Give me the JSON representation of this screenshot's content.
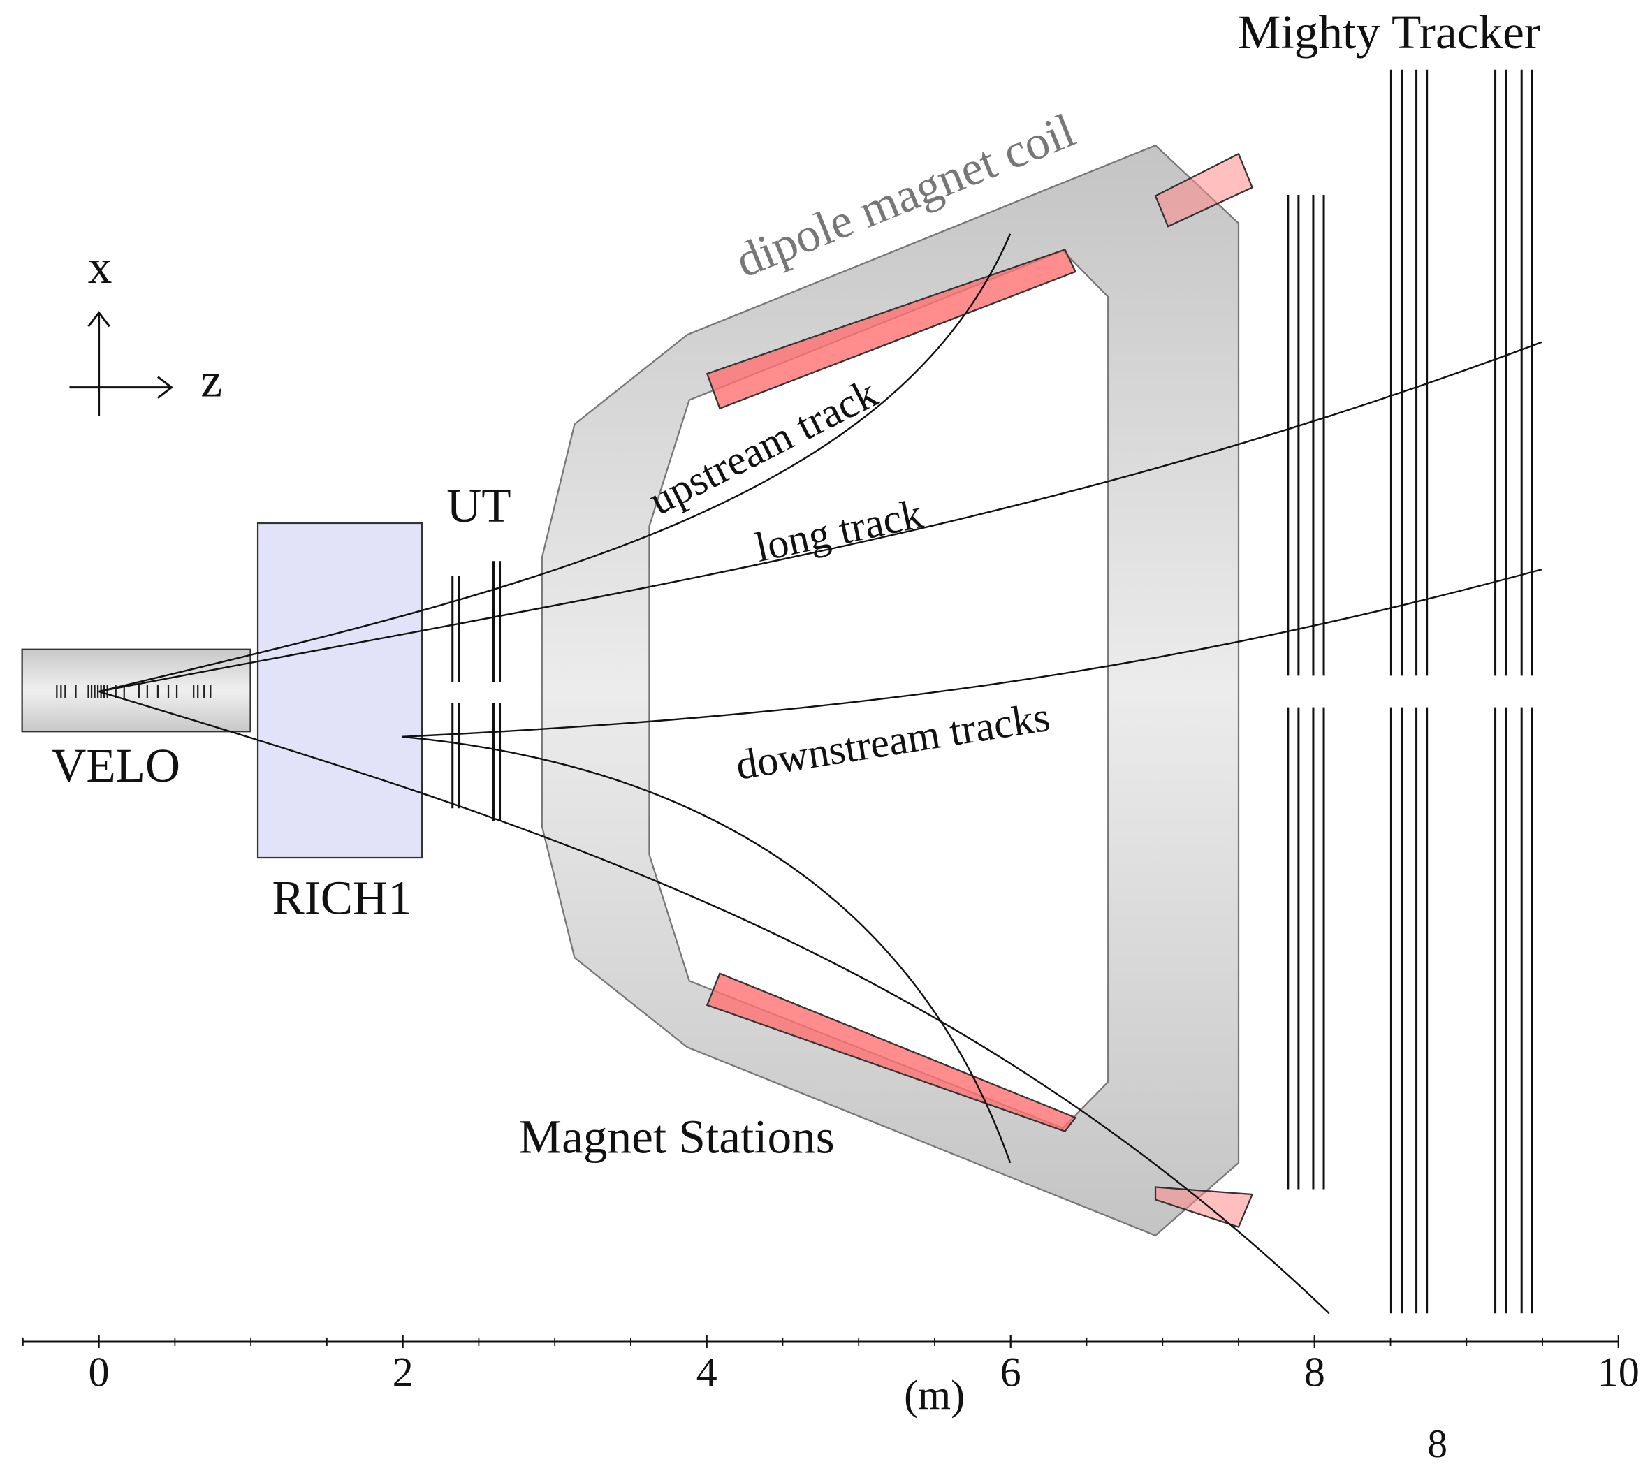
{
  "header": {
    "title": "Mighty Tracker"
  },
  "labels": {
    "magnet": "dipole magnet coil",
    "x_axis_dir": "x",
    "z_axis_dir": "z",
    "ut": "UT",
    "upstream": "upstream track",
    "long": "long track",
    "downstream": "downstream tracks",
    "velo": "VELO",
    "rich": "RICH1",
    "stations": "Magnet Stations"
  },
  "axis": {
    "label": "(m)",
    "range": [
      -0.5,
      10
    ],
    "ticks": [
      0,
      2,
      4,
      6,
      8,
      10
    ]
  },
  "page_number": "8"
}
